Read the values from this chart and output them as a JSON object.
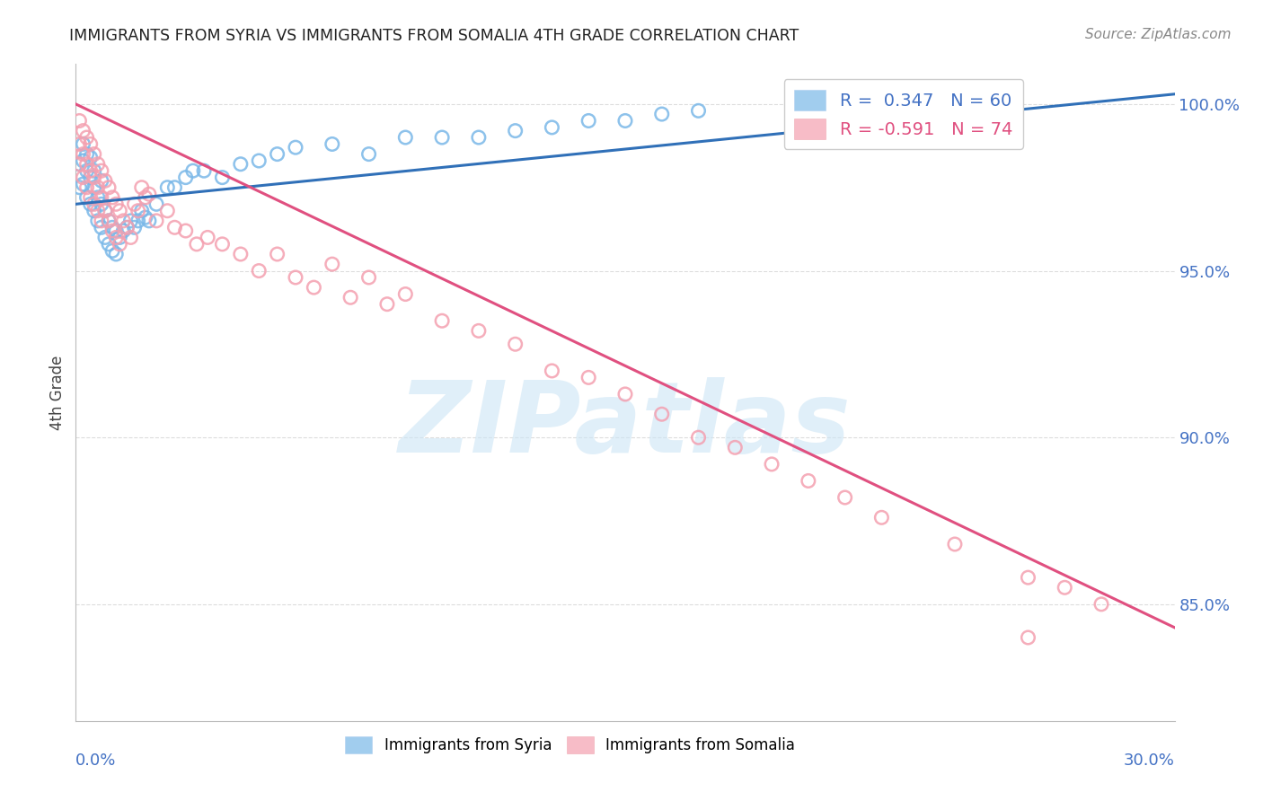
{
  "title": "IMMIGRANTS FROM SYRIA VS IMMIGRANTS FROM SOMALIA 4TH GRADE CORRELATION CHART",
  "source": "Source: ZipAtlas.com",
  "ylabel": "4th Grade",
  "ylabel_right_labels": [
    "100.0%",
    "95.0%",
    "90.0%",
    "85.0%"
  ],
  "ylabel_right_values": [
    1.0,
    0.95,
    0.9,
    0.85
  ],
  "x_min": 0.0,
  "x_max": 0.3,
  "y_min": 0.815,
  "y_max": 1.012,
  "syria_color": "#7ab8e8",
  "somalia_color": "#f4a0b0",
  "syria_line_color": "#3070b8",
  "somalia_line_color": "#e05080",
  "watermark_text": "ZIPatlas",
  "background_color": "#ffffff",
  "grid_color": "#dddddd",
  "syria_line_x": [
    0.0,
    0.3
  ],
  "syria_line_y": [
    0.97,
    1.003
  ],
  "somalia_line_x": [
    0.0,
    0.3
  ],
  "somalia_line_y": [
    1.0,
    0.843
  ],
  "syria_scatter_x": [
    0.001,
    0.001,
    0.002,
    0.002,
    0.002,
    0.003,
    0.003,
    0.003,
    0.004,
    0.004,
    0.004,
    0.005,
    0.005,
    0.005,
    0.006,
    0.006,
    0.007,
    0.007,
    0.007,
    0.008,
    0.008,
    0.009,
    0.009,
    0.01,
    0.01,
    0.011,
    0.011,
    0.012,
    0.013,
    0.014,
    0.015,
    0.016,
    0.017,
    0.018,
    0.019,
    0.02,
    0.022,
    0.025,
    0.027,
    0.03,
    0.032,
    0.035,
    0.04,
    0.045,
    0.05,
    0.055,
    0.06,
    0.07,
    0.08,
    0.09,
    0.1,
    0.11,
    0.12,
    0.13,
    0.14,
    0.15,
    0.16,
    0.17,
    0.2,
    0.235
  ],
  "syria_scatter_y": [
    0.975,
    0.982,
    0.976,
    0.983,
    0.988,
    0.972,
    0.98,
    0.985,
    0.97,
    0.978,
    0.984,
    0.968,
    0.975,
    0.98,
    0.965,
    0.972,
    0.963,
    0.97,
    0.977,
    0.96,
    0.968,
    0.958,
    0.965,
    0.956,
    0.963,
    0.955,
    0.962,
    0.96,
    0.962,
    0.963,
    0.965,
    0.963,
    0.965,
    0.968,
    0.966,
    0.965,
    0.97,
    0.975,
    0.975,
    0.978,
    0.98,
    0.98,
    0.978,
    0.982,
    0.983,
    0.985,
    0.987,
    0.988,
    0.985,
    0.99,
    0.99,
    0.99,
    0.992,
    0.993,
    0.995,
    0.995,
    0.997,
    0.998,
    0.995,
    1.0
  ],
  "somalia_scatter_x": [
    0.001,
    0.001,
    0.001,
    0.002,
    0.002,
    0.002,
    0.003,
    0.003,
    0.003,
    0.004,
    0.004,
    0.004,
    0.005,
    0.005,
    0.005,
    0.006,
    0.006,
    0.006,
    0.007,
    0.007,
    0.007,
    0.008,
    0.008,
    0.009,
    0.009,
    0.01,
    0.01,
    0.011,
    0.011,
    0.012,
    0.012,
    0.013,
    0.014,
    0.015,
    0.016,
    0.017,
    0.018,
    0.019,
    0.02,
    0.022,
    0.025,
    0.027,
    0.03,
    0.033,
    0.036,
    0.04,
    0.045,
    0.05,
    0.055,
    0.06,
    0.065,
    0.07,
    0.075,
    0.08,
    0.085,
    0.09,
    0.1,
    0.11,
    0.12,
    0.13,
    0.14,
    0.15,
    0.16,
    0.17,
    0.18,
    0.19,
    0.2,
    0.21,
    0.22,
    0.24,
    0.26,
    0.27,
    0.28,
    0.26
  ],
  "somalia_scatter_y": [
    0.995,
    0.988,
    0.982,
    0.992,
    0.985,
    0.978,
    0.99,
    0.982,
    0.975,
    0.988,
    0.98,
    0.972,
    0.985,
    0.978,
    0.97,
    0.982,
    0.975,
    0.968,
    0.98,
    0.972,
    0.965,
    0.977,
    0.968,
    0.975,
    0.965,
    0.972,
    0.962,
    0.97,
    0.96,
    0.968,
    0.958,
    0.965,
    0.963,
    0.96,
    0.97,
    0.968,
    0.975,
    0.972,
    0.973,
    0.965,
    0.968,
    0.963,
    0.962,
    0.958,
    0.96,
    0.958,
    0.955,
    0.95,
    0.955,
    0.948,
    0.945,
    0.952,
    0.942,
    0.948,
    0.94,
    0.943,
    0.935,
    0.932,
    0.928,
    0.92,
    0.918,
    0.913,
    0.907,
    0.9,
    0.897,
    0.892,
    0.887,
    0.882,
    0.876,
    0.868,
    0.858,
    0.855,
    0.85,
    0.84
  ]
}
